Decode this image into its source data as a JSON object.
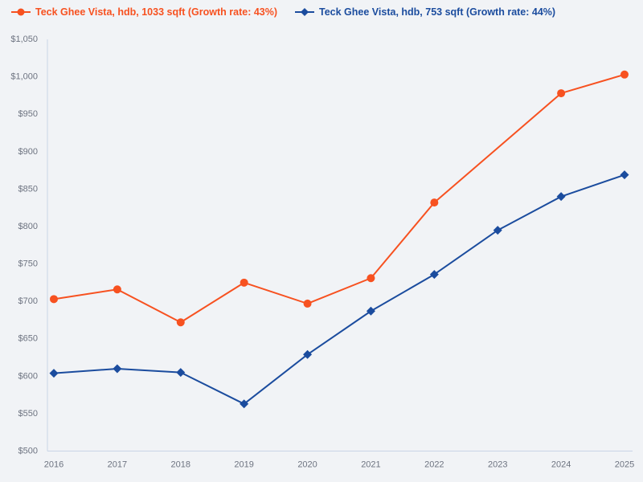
{
  "chart_data": {
    "type": "line",
    "title": "",
    "categories": [
      "2016",
      "2017",
      "2018",
      "2019",
      "2020",
      "2021",
      "2022",
      "2023",
      "2024",
      "2025"
    ],
    "series": [
      {
        "name": "Teck Ghee Vista, hdb, 1033 sqft (Growth rate: 43%)",
        "color": "#f75120",
        "marker": "circle",
        "values": [
          703,
          716,
          672,
          725,
          697,
          731,
          832,
          null,
          978,
          1003
        ]
      },
      {
        "name": "Teck Ghee Vista, hdb, 753 sqft (Growth rate: 44%)",
        "color": "#1b4c9e",
        "marker": "diamond",
        "values": [
          604,
          610,
          605,
          563,
          629,
          687,
          736,
          795,
          840,
          869
        ]
      }
    ],
    "xlabel": "",
    "ylabel": "",
    "ylim": [
      500,
      1050
    ],
    "y_tick_step": 50,
    "y_tick_prefix": "$",
    "grid": false,
    "legend_position": "top-left",
    "background_color": "#f1f3f6",
    "axis_line_color": "#c9d4e7",
    "tick_label_color": "#6d7380"
  }
}
